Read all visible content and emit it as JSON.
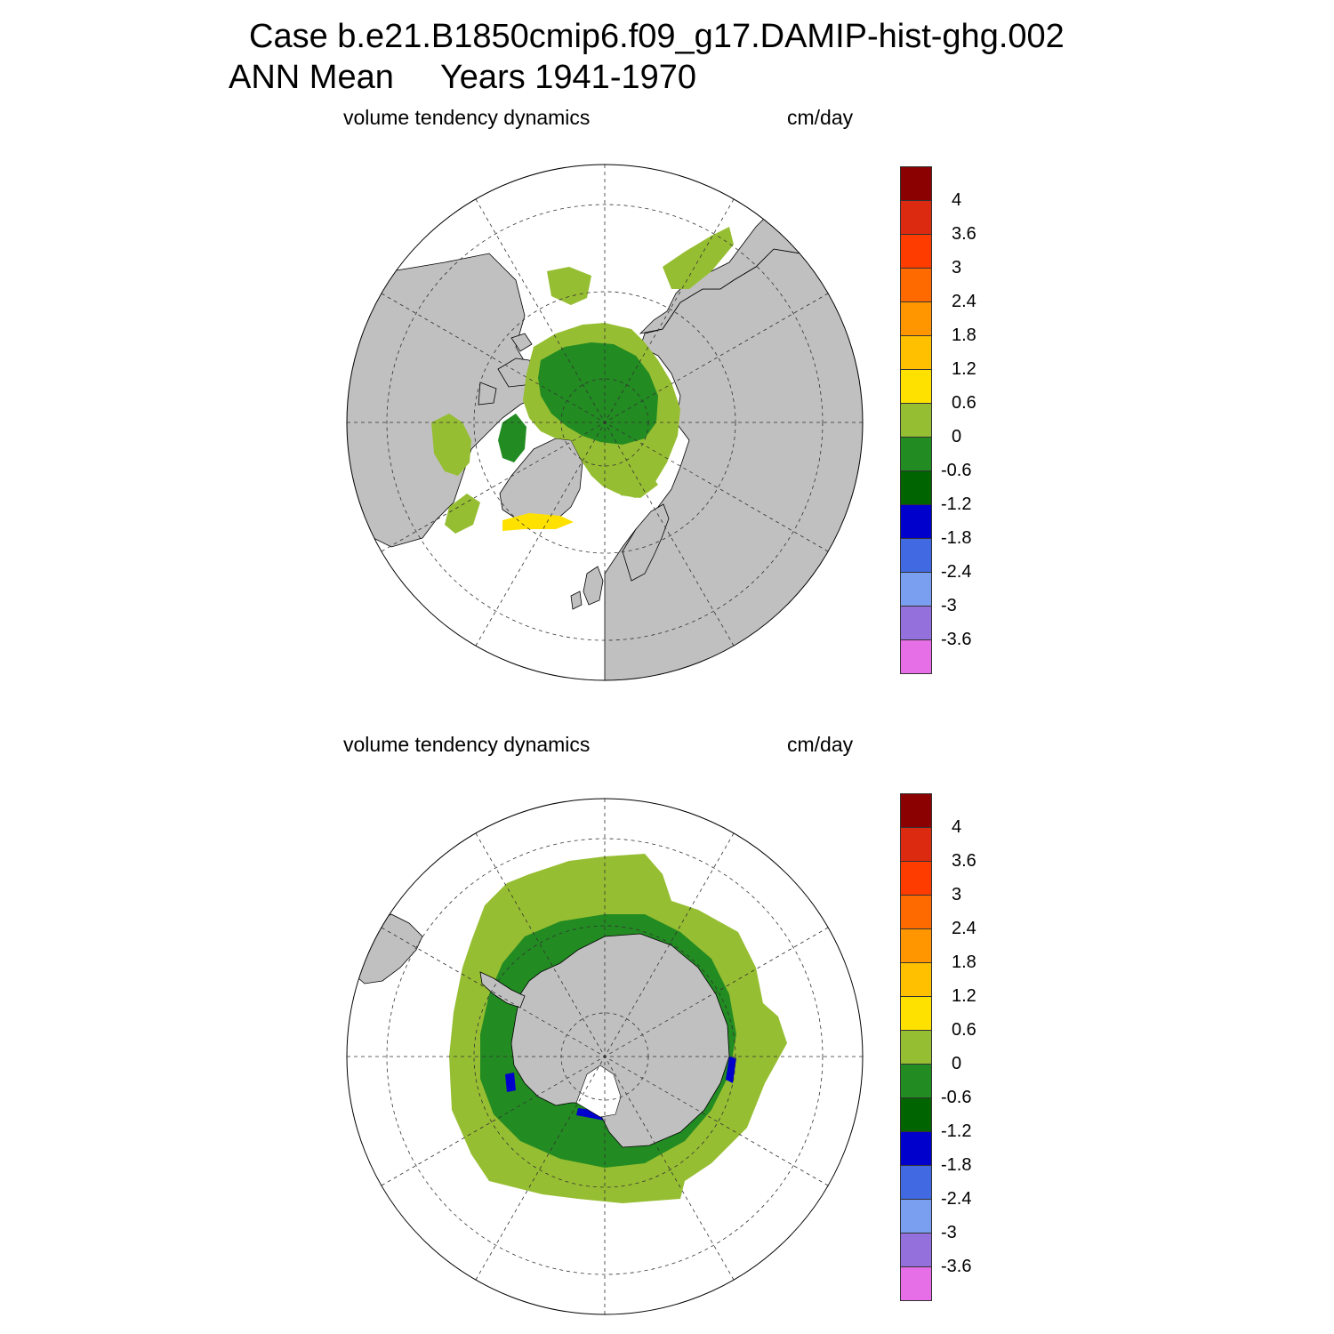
{
  "title": {
    "line1": "Case b.e21.B1850cmip6.f09_g17.DAMIP-hist-ghg.002",
    "line2": "ANN Mean     Years 1941-1970"
  },
  "panels": [
    {
      "id": "north",
      "variable": "volume tendency dynamics",
      "units": "cm/day",
      "hemisphere": "north"
    },
    {
      "id": "south",
      "variable": "volume tendency dynamics",
      "units": "cm/day",
      "hemisphere": "south"
    }
  ],
  "colorbar": {
    "colors": [
      "#8b0000",
      "#dc2a10",
      "#ff3c00",
      "#ff6a00",
      "#ff9600",
      "#ffc000",
      "#ffe100",
      "#96be32",
      "#228b22",
      "#006400",
      "#0000cd",
      "#4169e1",
      "#7b9ff0",
      "#9370db",
      "#e66ee6"
    ],
    "labels": [
      "4",
      "3.6",
      "3",
      "2.4",
      "1.8",
      "1.2",
      "0.6",
      "0",
      "-0.6",
      "-1.2",
      "-1.8",
      "-2.4",
      "-3",
      "-3.6"
    ]
  },
  "map_colors": {
    "land": "#c0c0c0",
    "ocean": "#ffffff",
    "ice_pos_small": "#96be32",
    "ice_neg_small": "#228b22",
    "ice_neg_med": "#006400",
    "ice_neg_large": "#0000cd",
    "ice_pos_med": "#ffe100"
  }
}
